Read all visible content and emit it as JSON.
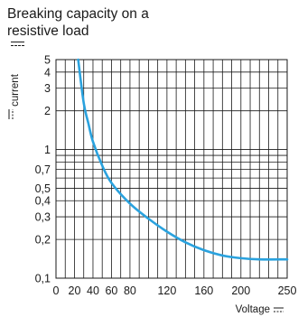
{
  "title_line1": "Breaking capacity on a",
  "title_line2": "resistive load",
  "chart_data": {
    "type": "line",
    "ylabel": "current",
    "xlabel": "Voltage",
    "xscale": "linear",
    "yscale": "log",
    "xlim": [
      0,
      250
    ],
    "ylim": [
      0.1,
      5
    ],
    "grid": true,
    "x_ticks": [
      0,
      20,
      40,
      60,
      80,
      120,
      160,
      200,
      250
    ],
    "x_tick_labels": [
      "0",
      "20",
      "40",
      "60",
      "80",
      "120",
      "160",
      "200",
      "250"
    ],
    "y_ticks": [
      0.1,
      0.2,
      0.3,
      0.4,
      0.5,
      0.7,
      1,
      2,
      3,
      4,
      5
    ],
    "y_tick_labels": [
      "0,1",
      "0,2",
      "0,3",
      "0,4",
      "0,5",
      "0,7",
      "1",
      "2",
      "3",
      "4",
      "5"
    ],
    "series": [
      {
        "color": "#2aa2de",
        "x": [
          24,
          30,
          35,
          40,
          50,
          60,
          80,
          100,
          120,
          140,
          160,
          180,
          200,
          220,
          250
        ],
        "y": [
          5,
          2.3,
          1.6,
          1.15,
          0.75,
          0.55,
          0.38,
          0.29,
          0.23,
          0.19,
          0.165,
          0.15,
          0.143,
          0.14,
          0.14
        ]
      }
    ]
  }
}
